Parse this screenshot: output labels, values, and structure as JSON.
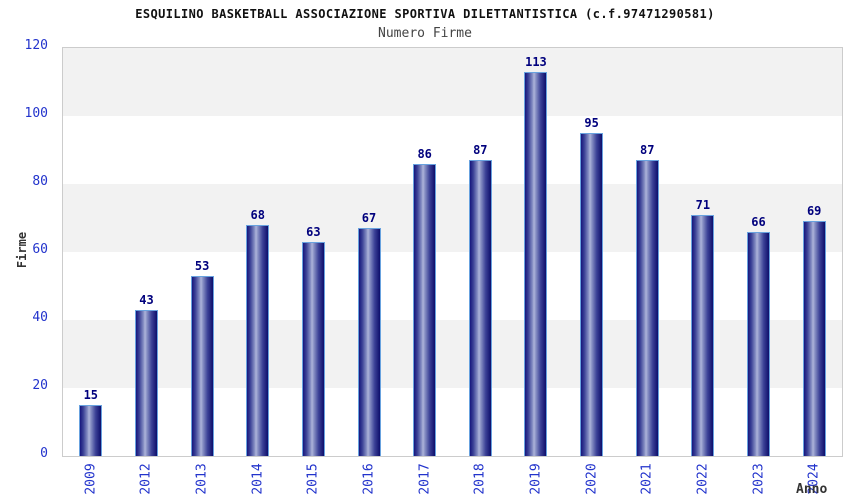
{
  "header": {
    "title": "ESQUILINO BASKETBALL ASSOCIAZIONE SPORTIVA DILETTANTISTICA (c.f.97471290581)",
    "subtitle": "Numero Firme"
  },
  "chart_data": {
    "type": "bar",
    "title": "ESQUILINO BASKETBALL ASSOCIAZIONE SPORTIVA DILETTANTISTICA (c.f.97471290581)",
    "subtitle": "Numero Firme",
    "categories": [
      "2009",
      "2012",
      "2013",
      "2014",
      "2015",
      "2016",
      "2017",
      "2018",
      "2019",
      "2020",
      "2021",
      "2022",
      "2023",
      "2024"
    ],
    "values": [
      15,
      43,
      53,
      68,
      63,
      67,
      86,
      87,
      113,
      95,
      87,
      71,
      66,
      69
    ],
    "xlabel": "Anno",
    "ylabel": "Firme",
    "ylim": [
      0,
      120
    ],
    "yticks": [
      120,
      100,
      80,
      60,
      40,
      20,
      0
    ],
    "grid": "horizontal-alternating-bands",
    "legend": "none",
    "bar_labels_shown": true
  },
  "colors": {
    "tick_label": "#2233cc",
    "value_label": "#00007d",
    "bar_border": "#68a2df",
    "bar_dark": "#16167d",
    "bar_light": "#aeb4da",
    "bar_darker": "#0e0e6b",
    "band_gray": "#f2f2f2",
    "plot_border": "#cccccc",
    "title": "#111111",
    "subtitle": "#444444",
    "axis_title": "#333333"
  }
}
